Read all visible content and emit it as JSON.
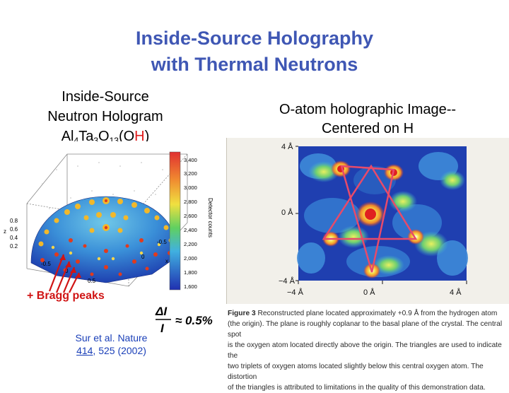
{
  "title": {
    "line1": "Inside-Source Holography",
    "line2": "with Thermal Neutrons"
  },
  "left_caption": {
    "line1": "Inside-Source",
    "line2": "Neutron Hologram",
    "formula_parts": [
      "Al",
      "4",
      "Ta",
      "3",
      "O",
      "13",
      "(O",
      "H",
      ")"
    ]
  },
  "right_caption": {
    "line1": "O-atom holographic Image--",
    "line2": "Centered on H"
  },
  "hologram": {
    "colorbar_ticks": [
      "3,400",
      "3,200",
      "3,000",
      "2,800",
      "2,600",
      "2,400",
      "2,200",
      "2,000",
      "1,800",
      "1,600"
    ],
    "colorbar_label": "Detector counts",
    "z_ticks": [
      "0.8",
      "0.6",
      "0.4",
      "0.2"
    ],
    "z_label": "z",
    "x_ticks": [
      "-0.5",
      "0",
      "0.5"
    ],
    "axis_labels": [
      "-0.5",
      "0",
      "x"
    ]
  },
  "bragg_label": "+ Bragg peaks",
  "reference": {
    "line1": "Sur et al. Nature",
    "volume": "414",
    "rest": ", 525 (2002)"
  },
  "formula": {
    "numerator": "ΔI",
    "denominator": "I",
    "approx": "≈ 0.5%"
  },
  "holo_image": {
    "y_ticks": [
      "4 Å",
      "0 Å",
      "−4 Å"
    ],
    "x_ticks": [
      "−4 Å",
      "0 Å",
      "4 Å"
    ]
  },
  "figure_caption": {
    "label": "Figure 3",
    "lines": [
      "Reconstructed plane located approximately +0.9 Å from the hydrogen atom",
      "(the origin). The plane is roughly coplanar to the basal plane of the crystal. The central spot",
      "is the oxygen atom located directly above the origin. The triangles are used to indicate the",
      "two triplets of oxygen atoms located slightly below this central oxygen atom. The distortion",
      "of the triangles is attributed to limitations in the quality of this demonstration data."
    ]
  },
  "colors": {
    "title": "#3f57b4",
    "accent_red": "#e01b1b",
    "reference_blue": "#1a3fb8"
  }
}
